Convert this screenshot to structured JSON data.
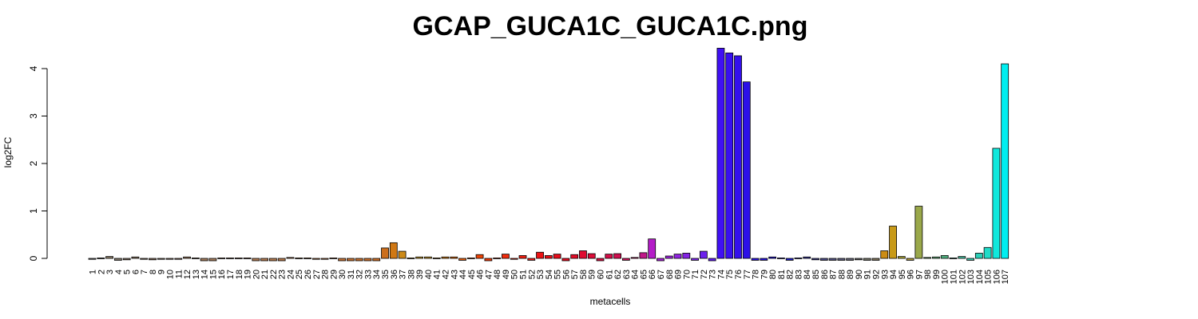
{
  "chart_data": {
    "type": "bar",
    "title": "GCAP_GUCA1C_GUCA1C.png",
    "xlabel": "metacells",
    "ylabel": "log2FC",
    "ylim": [
      0,
      4.45
    ],
    "yticks": [
      0,
      1,
      2,
      3,
      4
    ],
    "categories": [
      "1",
      "2",
      "3",
      "4",
      "5",
      "6",
      "7",
      "8",
      "9",
      "10",
      "11",
      "12",
      "13",
      "14",
      "15",
      "16",
      "17",
      "18",
      "19",
      "20",
      "21",
      "22",
      "23",
      "24",
      "25",
      "26",
      "27",
      "28",
      "29",
      "30",
      "31",
      "32",
      "33",
      "34",
      "35",
      "36",
      "37",
      "38",
      "39",
      "40",
      "41",
      "42",
      "43",
      "44",
      "45",
      "46",
      "47",
      "48",
      "49",
      "50",
      "51",
      "52",
      "53",
      "54",
      "55",
      "56",
      "57",
      "58",
      "59",
      "60",
      "61",
      "62",
      "63",
      "64",
      "65",
      "66",
      "67",
      "68",
      "69",
      "70",
      "71",
      "72",
      "73",
      "74",
      "75",
      "76",
      "77",
      "78",
      "79",
      "80",
      "81",
      "82",
      "83",
      "84",
      "85",
      "86",
      "87",
      "88",
      "89",
      "90",
      "91",
      "92",
      "93",
      "94",
      "95",
      "96",
      "97",
      "98",
      "99",
      "100",
      "101",
      "102",
      "103",
      "104",
      "105",
      "106",
      "107"
    ],
    "values": [
      -0.02,
      0.01,
      0.04,
      -0.04,
      -0.03,
      0.03,
      -0.02,
      -0.03,
      -0.02,
      -0.02,
      -0.02,
      0.03,
      0.01,
      -0.05,
      -0.05,
      0.01,
      0.01,
      0.01,
      0.01,
      -0.05,
      -0.05,
      -0.05,
      -0.05,
      0.02,
      0.01,
      0.01,
      -0.02,
      -0.02,
      0.01,
      -0.05,
      -0.05,
      -0.05,
      -0.05,
      -0.05,
      0.22,
      0.33,
      0.15,
      0.01,
      0.03,
      0.03,
      0.01,
      0.03,
      0.03,
      -0.04,
      0.01,
      0.08,
      -0.05,
      0.01,
      0.09,
      -0.02,
      0.06,
      -0.04,
      0.13,
      0.06,
      0.09,
      -0.05,
      0.08,
      0.16,
      0.1,
      -0.05,
      0.09,
      0.1,
      -0.04,
      0.02,
      0.12,
      0.41,
      -0.05,
      0.05,
      0.09,
      0.11,
      -0.04,
      0.15,
      -0.05,
      4.43,
      4.33,
      4.27,
      3.72,
      -0.04,
      -0.04,
      0.03,
      0.01,
      -0.04,
      0.01,
      0.03,
      -0.03,
      -0.04,
      -0.04,
      -0.04,
      -0.04,
      -0.03,
      -0.04,
      -0.04,
      0.16,
      0.68,
      0.04,
      -0.04,
      1.1,
      0.02,
      0.03,
      0.06,
      0.01,
      0.04,
      -0.04,
      0.11,
      0.23,
      2.32,
      4.1
    ],
    "colors": [
      "#6e6e6e",
      "#7a746c",
      "#8a7b66",
      "#7f7466",
      "#857666",
      "#8c7864",
      "#917a63",
      "#8a7260",
      "#8c7462",
      "#907461",
      "#93745f",
      "#9a7a60",
      "#a07d60",
      "#a27b5e",
      "#a47d5e",
      "#a67e5e",
      "#a97e5c",
      "#ab7e5a",
      "#ad7d58",
      "#af7c55",
      "#b07a52",
      "#b27a50",
      "#b4794d",
      "#b6784a",
      "#b87748",
      "#ba7645",
      "#bc7542",
      "#be7440",
      "#c0733c",
      "#c27238",
      "#c47134",
      "#c67030",
      "#c86f2c",
      "#ca6e28",
      "#cc6e1c",
      "#d07814",
      "#cc8a18",
      "#c99a28",
      "#c49b30",
      "#c69a30",
      "#cc8a20",
      "#d47c18",
      "#dc6c10",
      "#e25c0c",
      "#e65008",
      "#ec4406",
      "#ee3a08",
      "#ef340a",
      "#f02c0c",
      "#f0240e",
      "#ef1e10",
      "#ee1812",
      "#ec1214",
      "#ea1018",
      "#e80e1c",
      "#e50c20",
      "#e20c28",
      "#df0c30",
      "#dc0c38",
      "#d80c40",
      "#d40e48",
      "#d01050",
      "#cc1258",
      "#c81460",
      "#c01888",
      "#b41cc8",
      "#a820d8",
      "#9c22dc",
      "#9024e0",
      "#8424e4",
      "#7824e8",
      "#6c20ec",
      "#601cf0",
      "#4010f4",
      "#3810f0",
      "#3410ec",
      "#2c10e8",
      "#2810e0",
      "#2410d8",
      "#2014d0",
      "#1c18c8",
      "#1c1cc0",
      "#1c20b8",
      "#3a3a9a",
      "#40408e",
      "#484884",
      "#50507c",
      "#585876",
      "#606070",
      "#68686a",
      "#707064",
      "#7c7058",
      "#cc8c14",
      "#c89a18",
      "#a8a030",
      "#b09a3a",
      "#9aa84a",
      "#6aa86a",
      "#62a876",
      "#50b080",
      "#4ab08a",
      "#42b898",
      "#38c4a8",
      "#2cd0b8",
      "#20dcc8",
      "#10e8dc",
      "#00eef0"
    ]
  }
}
